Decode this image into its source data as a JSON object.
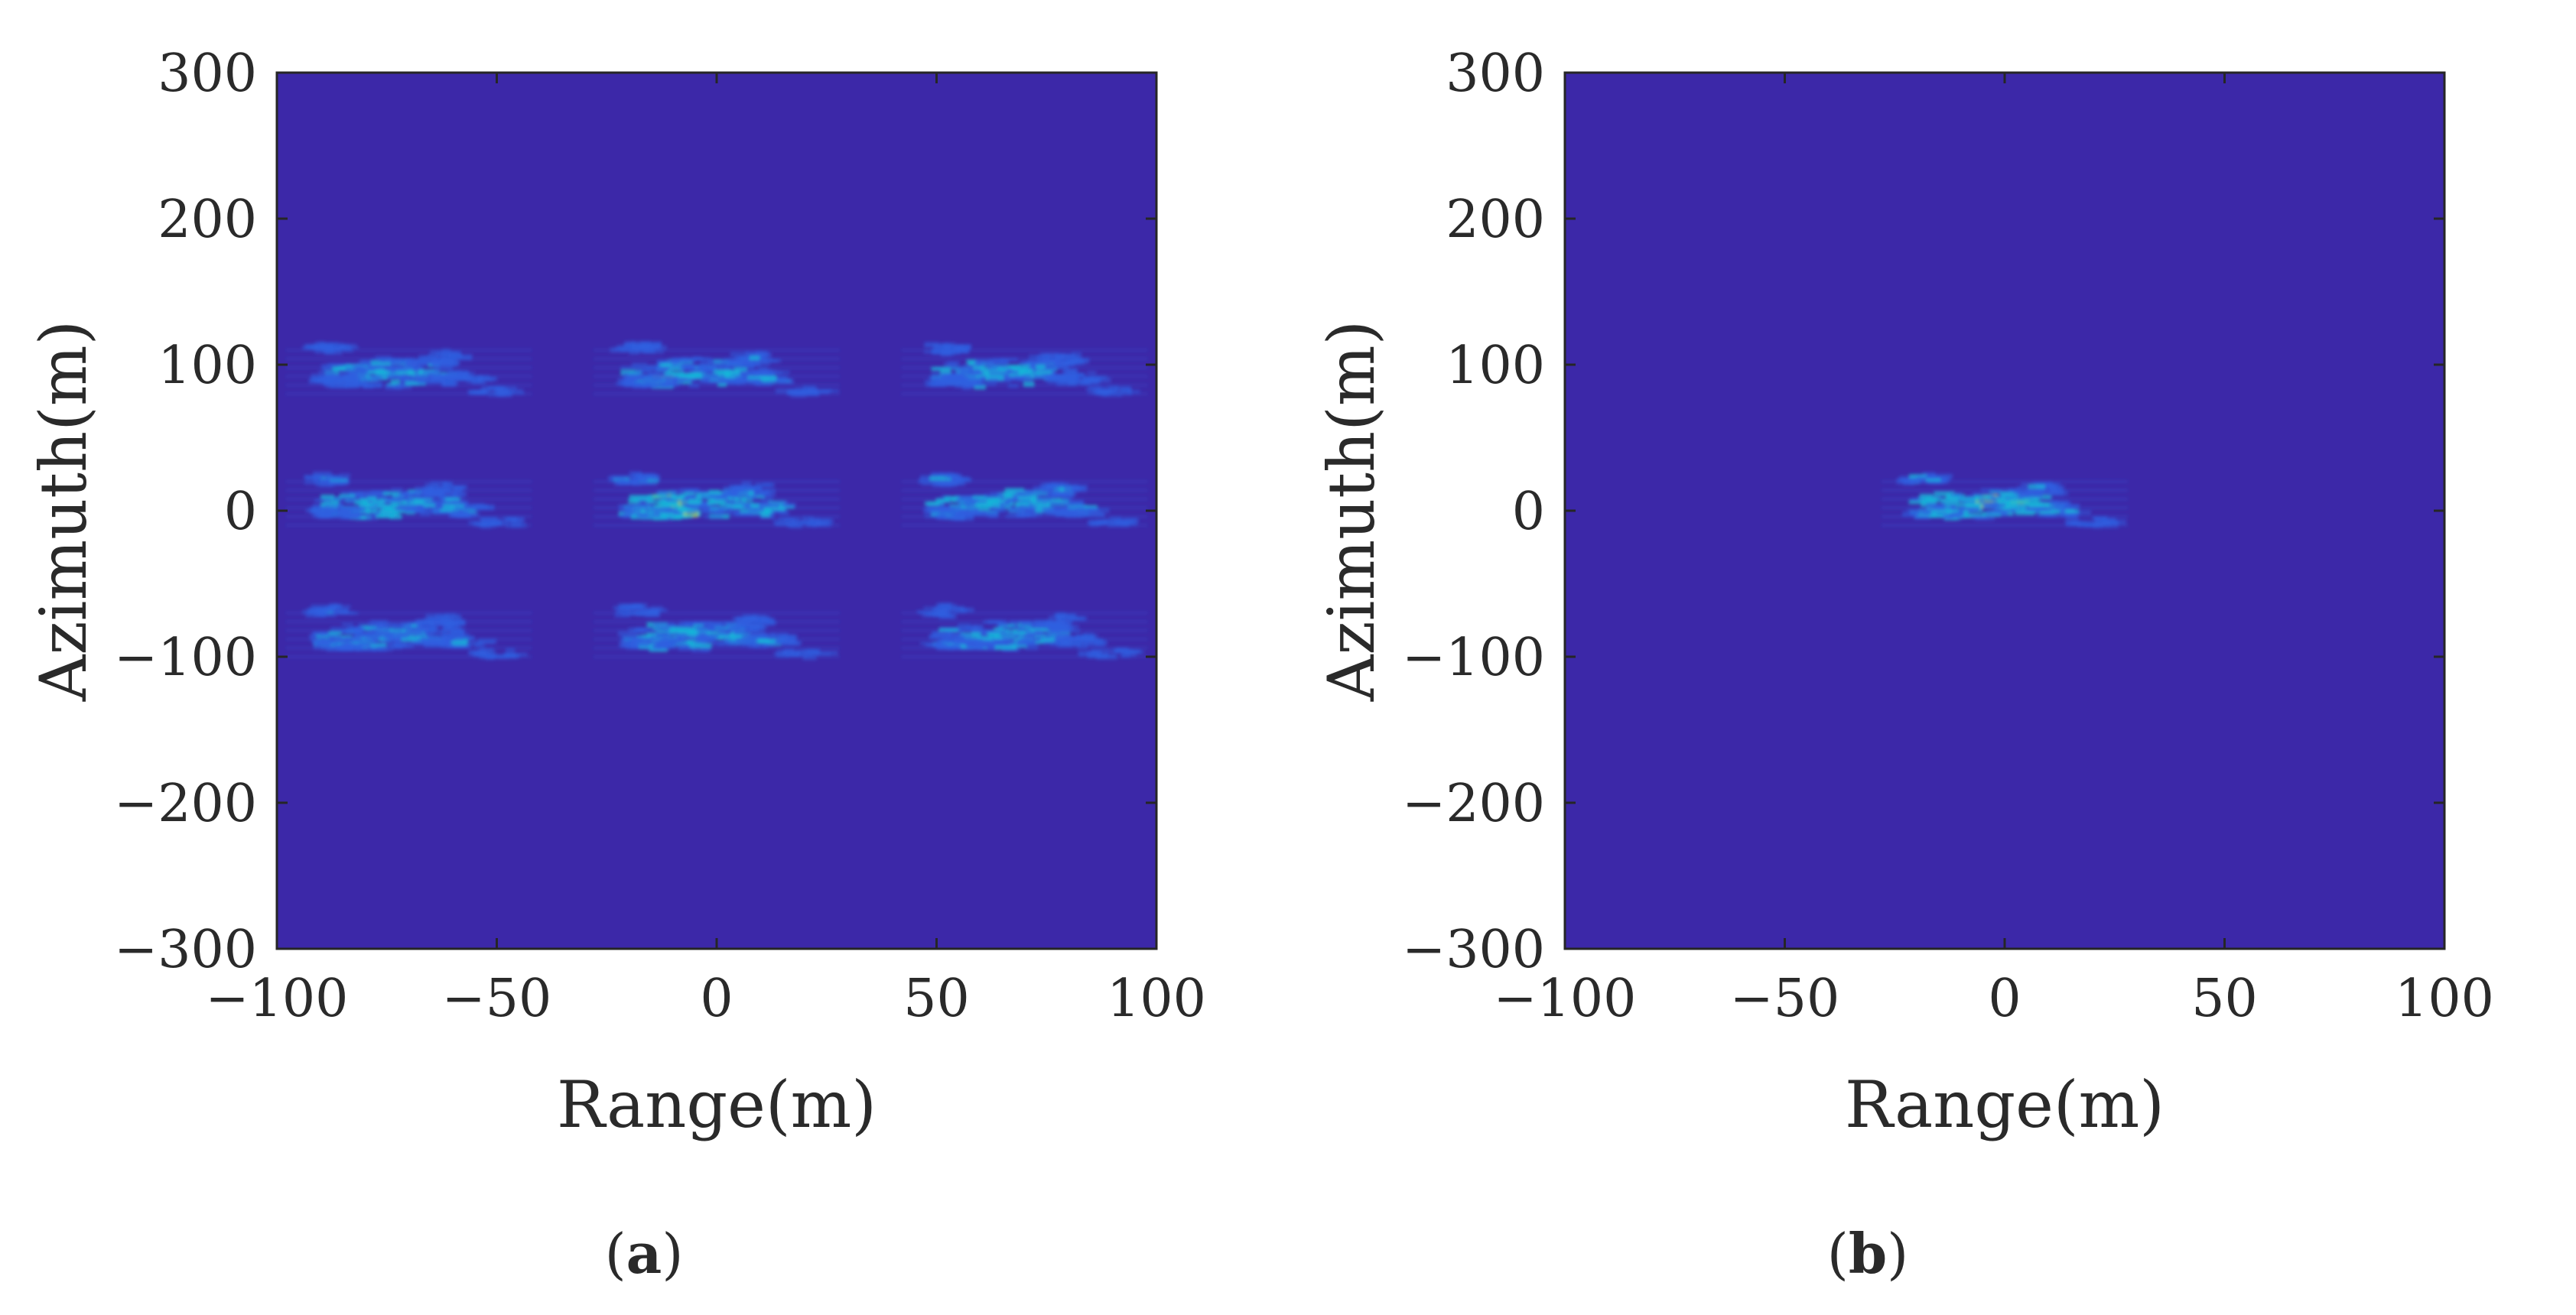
{
  "colors": {
    "background": "#3c28a8",
    "axes": "#262626",
    "scatter_low": "#2f5fe0",
    "scatter_mid": "#18b6d8",
    "scatter_high": "#b4e03a"
  },
  "chart_data": [
    {
      "type": "heatmap",
      "panel_label": "a",
      "xlabel": "Range(m)",
      "ylabel": "Azimuth(m)",
      "xlim": [
        -100,
        100
      ],
      "ylim": [
        -300,
        300
      ],
      "xticks": [
        -100,
        -50,
        0,
        50,
        100
      ],
      "yticks": [
        -300,
        -200,
        -100,
        0,
        100,
        200,
        300
      ],
      "xtick_labels": [
        "−100",
        "−50",
        "0",
        "50",
        "100"
      ],
      "ytick_labels": [
        "−300",
        "−200",
        "−100",
        "0",
        "100",
        "200",
        "300"
      ],
      "grid": false,
      "colorbar": false,
      "targets": [
        {
          "x": -70,
          "y": 95,
          "intensity": 0.55
        },
        {
          "x": 0,
          "y": 95,
          "intensity": 0.65
        },
        {
          "x": 70,
          "y": 95,
          "intensity": 0.55
        },
        {
          "x": -70,
          "y": 5,
          "intensity": 0.65
        },
        {
          "x": 0,
          "y": 5,
          "intensity": 0.9
        },
        {
          "x": 70,
          "y": 5,
          "intensity": 0.65
        },
        {
          "x": -70,
          "y": -85,
          "intensity": 0.55
        },
        {
          "x": 0,
          "y": -85,
          "intensity": 0.65
        },
        {
          "x": 70,
          "y": -85,
          "intensity": 0.55
        }
      ]
    },
    {
      "type": "heatmap",
      "panel_label": "b",
      "xlabel": "Range(m)",
      "ylabel": "Azimuth(m)",
      "xlim": [
        -100,
        100
      ],
      "ylim": [
        -300,
        300
      ],
      "xticks": [
        -100,
        -50,
        0,
        50,
        100
      ],
      "yticks": [
        -300,
        -200,
        -100,
        0,
        100,
        200,
        300
      ],
      "xtick_labels": [
        "−100",
        "−50",
        "0",
        "50",
        "100"
      ],
      "ytick_labels": [
        "−300",
        "−200",
        "−100",
        "0",
        "100",
        "200",
        "300"
      ],
      "grid": false,
      "colorbar": false,
      "targets": [
        {
          "x": 0,
          "y": 5,
          "intensity": 0.85
        }
      ]
    }
  ]
}
